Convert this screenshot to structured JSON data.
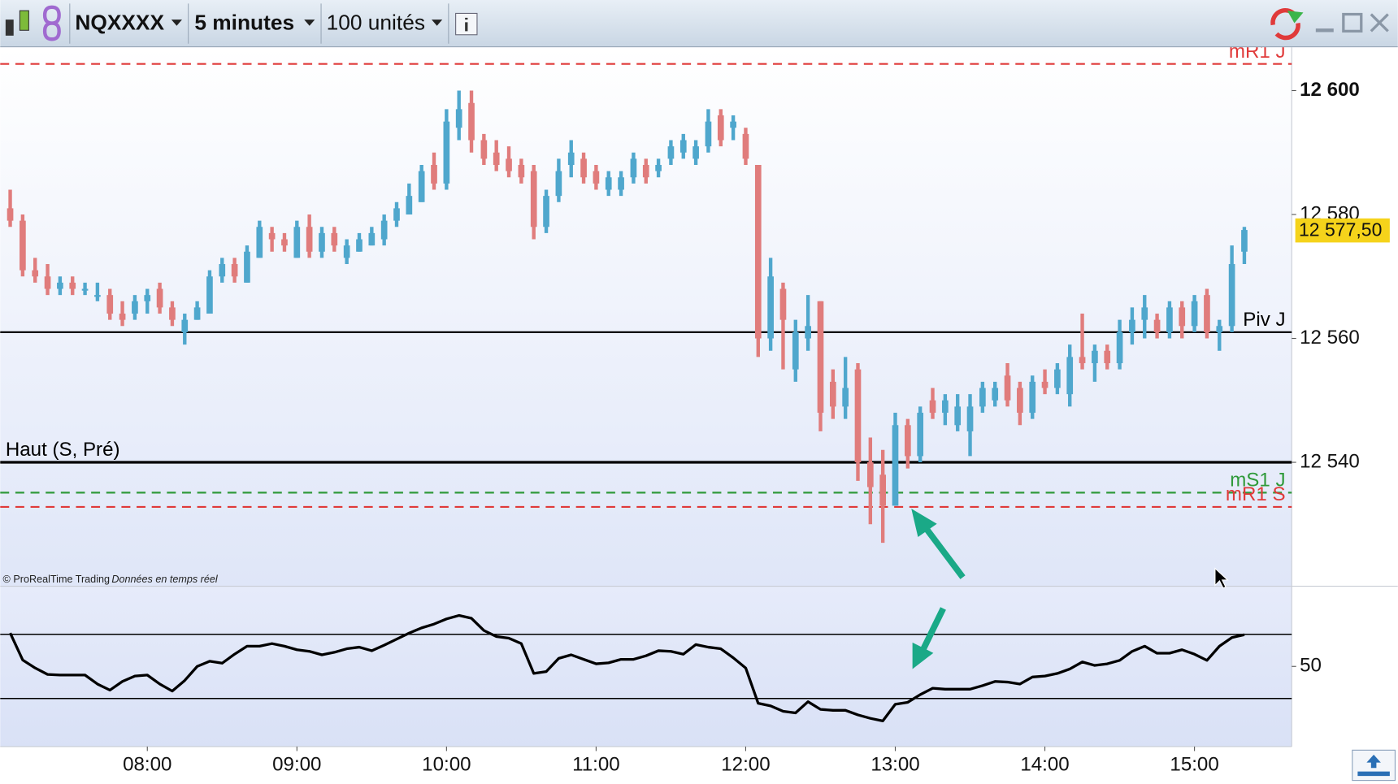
{
  "toolbar": {
    "symbol": "NQXXXX",
    "timeframe": "5 minutes",
    "units": "100 unités"
  },
  "footer": {
    "copyright": "© ProRealTime Trading",
    "feed": "Données en temps réel"
  },
  "chart_data": {
    "type": "ohlc",
    "x": [
      "07:05",
      "07:10",
      "07:15",
      "07:20",
      "07:25",
      "07:30",
      "07:35",
      "07:40",
      "07:45",
      "07:50",
      "07:55",
      "08:00",
      "08:05",
      "08:10",
      "08:15",
      "08:20",
      "08:25",
      "08:30",
      "08:35",
      "08:40",
      "08:45",
      "08:50",
      "08:55",
      "09:00",
      "09:05",
      "09:10",
      "09:15",
      "09:20",
      "09:25",
      "09:30",
      "09:35",
      "09:40",
      "09:45",
      "09:50",
      "09:55",
      "10:00",
      "10:05",
      "10:10",
      "10:15",
      "10:20",
      "10:25",
      "10:30",
      "10:35",
      "10:40",
      "10:45",
      "10:50",
      "10:55",
      "11:00",
      "11:05",
      "11:10",
      "11:15",
      "11:20",
      "11:25",
      "11:30",
      "11:35",
      "11:40",
      "11:45",
      "11:50",
      "11:55",
      "12:00",
      "12:05",
      "12:10",
      "12:15",
      "12:20",
      "12:25",
      "12:30",
      "12:35",
      "12:40",
      "12:45",
      "12:50",
      "12:55",
      "13:00",
      "13:05",
      "13:10",
      "13:15",
      "13:20",
      "13:25",
      "13:30",
      "13:35",
      "13:40",
      "13:45",
      "13:50",
      "13:55",
      "14:00",
      "14:05",
      "14:10",
      "14:15",
      "14:20",
      "14:25",
      "14:30",
      "14:35",
      "14:40",
      "14:45",
      "14:50",
      "14:55",
      "15:00",
      "15:05",
      "15:10",
      "15:15",
      "15:20"
    ],
    "open": [
      12581,
      12579,
      12571,
      12570,
      12568,
      12569,
      12568,
      12567,
      12567,
      12564,
      12564,
      12566,
      12568,
      12565,
      12561,
      12563,
      12564,
      12570,
      12572,
      12569,
      12573,
      12577,
      12576,
      12573,
      12578,
      12574,
      12577,
      12573,
      12574,
      12575,
      12576,
      12579,
      12580,
      12582,
      12588,
      12585,
      12594,
      12598,
      12592,
      12590,
      12589,
      12588,
      12587,
      12578,
      12583,
      12588,
      12589,
      12587,
      12584,
      12584,
      12586,
      12588,
      12587,
      12589,
      12590,
      12589,
      12591,
      12596,
      12594,
      12593,
      12588,
      12560,
      12568,
      12555,
      12560,
      12566,
      12553,
      12549,
      12555,
      12540,
      12538,
      12533,
      12546,
      12541,
      12550,
      12548,
      12546,
      12545,
      12549,
      12550,
      12554,
      12552,
      12548,
      12553,
      12552,
      12551,
      12557,
      12556,
      12558,
      12556,
      12561,
      12563,
      12563,
      12561,
      12565,
      12562,
      12567,
      12561,
      12562,
      12574
    ],
    "high": [
      12584,
      12580,
      12573,
      12572,
      12570,
      12570,
      12569,
      12569,
      12568,
      12566,
      12567,
      12568,
      12569,
      12566,
      12564,
      12566,
      12571,
      12573,
      12573,
      12575,
      12579,
      12578,
      12577,
      12579,
      12580,
      12578,
      12578,
      12576,
      12577,
      12578,
      12580,
      12582,
      12585,
      12588,
      12590,
      12597,
      12600,
      12600,
      12593,
      12592,
      12591,
      12589,
      12588,
      12584,
      12589,
      12592,
      12590,
      12588,
      12587,
      12587,
      12590,
      12589,
      12589,
      12592,
      12593,
      12592,
      12597,
      12597,
      12596,
      12594,
      12588,
      12573,
      12569,
      12563,
      12567,
      12566,
      12555,
      12557,
      12556,
      12544,
      12542,
      12548,
      12547,
      12549,
      12552,
      12551,
      12551,
      12551,
      12553,
      12553,
      12556,
      12553,
      12554,
      12555,
      12556,
      12559,
      12564,
      12559,
      12559,
      12563,
      12565,
      12567,
      12564,
      12566,
      12566,
      12567,
      12568,
      12563,
      12575,
      12578
    ],
    "low": [
      12578,
      12570,
      12569,
      12567,
      12567,
      12567,
      12567,
      12566,
      12563,
      12562,
      12563,
      12564,
      12564,
      12562,
      12559,
      12563,
      12564,
      12569,
      12569,
      12569,
      12573,
      12574,
      12574,
      12573,
      12573,
      12573,
      12574,
      12572,
      12574,
      12575,
      12575,
      12578,
      12580,
      12582,
      12584,
      12584,
      12592,
      12590,
      12588,
      12587,
      12586,
      12585,
      12576,
      12577,
      12582,
      12586,
      12585,
      12584,
      12583,
      12583,
      12585,
      12585,
      12586,
      12588,
      12589,
      12588,
      12590,
      12591,
      12592,
      12588,
      12557,
      12558,
      12555,
      12553,
      12558,
      12545,
      12547,
      12547,
      12537,
      12530,
      12527,
      12533,
      12539,
      12540,
      12547,
      12546,
      12545,
      12541,
      12548,
      12549,
      12549,
      12546,
      12547,
      12551,
      12551,
      12549,
      12555,
      12553,
      12555,
      12555,
      12559,
      12560,
      12560,
      12560,
      12560,
      12561,
      12560,
      12558,
      12561,
      12572
    ],
    "close": [
      12579,
      12571,
      12570,
      12568,
      12569,
      12568,
      12568,
      12567,
      12564,
      12563,
      12566,
      12567,
      12565,
      12563,
      12563,
      12565,
      12570,
      12572,
      12570,
      12574,
      12578,
      12576,
      12575,
      12578,
      12574,
      12577,
      12575,
      12575,
      12576,
      12577,
      12579,
      12581,
      12583,
      12587,
      12585,
      12595,
      12597,
      12592,
      12589,
      12588,
      12587,
      12586,
      12578,
      12583,
      12587,
      12590,
      12586,
      12585,
      12586,
      12586,
      12589,
      12586,
      12588,
      12591,
      12592,
      12591,
      12595,
      12592,
      12595,
      12589,
      12560,
      12570,
      12563,
      12561,
      12562,
      12548,
      12549,
      12552,
      12540,
      12536,
      12533,
      12546,
      12541,
      12548,
      12548,
      12550,
      12549,
      12549,
      12552,
      12552,
      12550,
      12548,
      12553,
      12552,
      12555,
      12557,
      12556,
      12558,
      12556,
      12561,
      12563,
      12565,
      12561,
      12565,
      12562,
      12566,
      12561,
      12562,
      12572,
      12577.5
    ],
    "up_color": "#4fa7cd",
    "down_color": "#e07c7c",
    "xlim": [
      "07:01",
      "15:39"
    ],
    "xticks": [
      "08:00",
      "09:00",
      "10:00",
      "11:00",
      "12:00",
      "13:00",
      "14:00",
      "15:00"
    ],
    "ylim": [
      12520,
      12607
    ],
    "yticks": [
      {
        "value": 12600,
        "label": "12 600"
      },
      {
        "value": 12580,
        "label": "12 580"
      },
      {
        "value": 12560,
        "label": "12 560"
      },
      {
        "value": 12540,
        "label": "12 540"
      }
    ],
    "levels": [
      {
        "name": "mR1 J",
        "value": 12604.3,
        "color": "#e03a3a",
        "style": "dashed",
        "label_position": "right"
      },
      {
        "name": "Piv J",
        "value": 12561,
        "color": "#000000",
        "style": "solid",
        "label_position": "right"
      },
      {
        "name": "Haut (S, Pré)",
        "value": 12540,
        "color": "#000000",
        "style": "solid",
        "label_position": "left"
      },
      {
        "name": "mS1 J",
        "value": 12535.1,
        "color": "#2f9a3a",
        "style": "dashed",
        "label_position": "right"
      },
      {
        "name": "mR1 S",
        "value": 12532.8,
        "color": "#e03a3a",
        "style": "dashed",
        "label_position": "right"
      }
    ],
    "last_price": {
      "value": 12577.5,
      "label": "12 577,50"
    },
    "indicator": {
      "type": "line",
      "color": "#000000",
      "ylim": [
        25,
        75
      ],
      "yticks": [
        50
      ],
      "levels": [
        60,
        40
      ],
      "values": [
        60.4,
        52,
        49.5,
        47.5,
        47.3,
        47.3,
        47.3,
        44.5,
        42.6,
        45.3,
        47,
        47.3,
        44.5,
        42.3,
        45.6,
        50,
        51.6,
        51,
        53.8,
        56.3,
        56.3,
        57.1,
        56.3,
        55.2,
        54.7,
        53.6,
        54.4,
        55.5,
        56,
        54.9,
        56.6,
        58.5,
        60.4,
        62,
        63.2,
        64.8,
        65.9,
        65,
        61.2,
        59.3,
        58.8,
        57.1,
        47.8,
        48.4,
        52.5,
        53.6,
        52.2,
        50.8,
        51.1,
        52.2,
        52.2,
        53.3,
        54.9,
        54.7,
        53.8,
        56.8,
        56,
        55.5,
        52.7,
        49.5,
        38.5,
        37.7,
        36,
        35.5,
        39,
        36.6,
        36.3,
        36.3,
        34.9,
        33.8,
        33,
        38.2,
        38.8,
        41.2,
        43.2,
        42.9,
        42.9,
        42.9,
        44,
        45.3,
        45.1,
        44.5,
        46.7,
        47,
        47.8,
        49.2,
        51.4,
        50.3,
        50.8,
        51.9,
        54.7,
        56.3,
        54.1,
        54.1,
        55.2,
        53.8,
        51.9,
        56.3,
        59,
        59.9
      ]
    }
  }
}
